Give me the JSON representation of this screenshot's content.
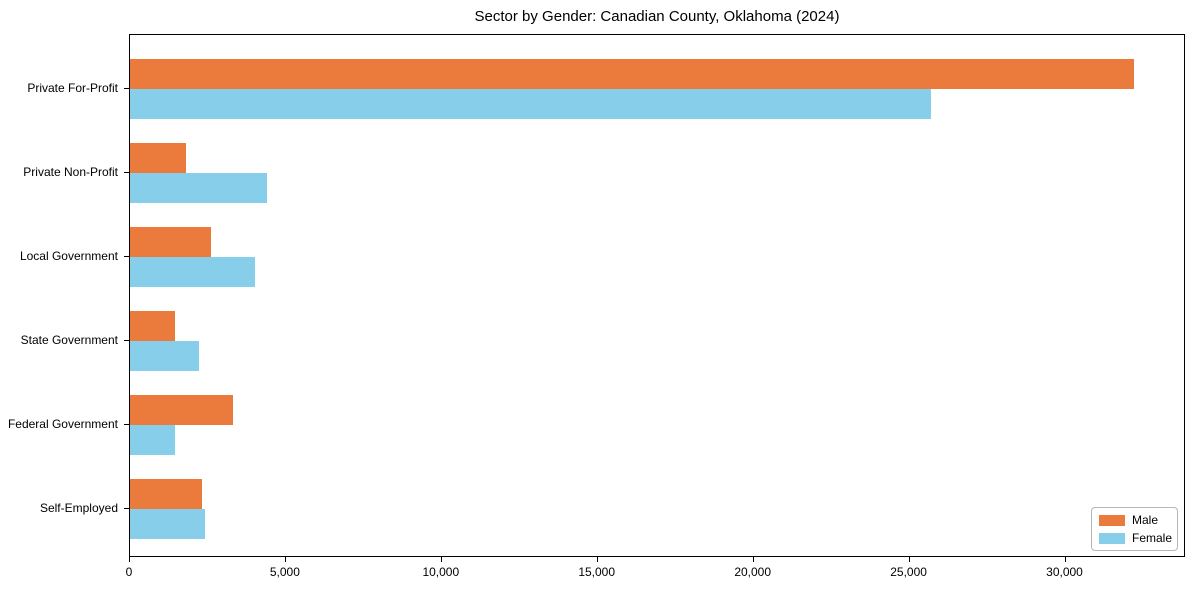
{
  "figure": {
    "title": "Sector by Gender: Canadian County, Oklahoma (2024)"
  },
  "chart_data": {
    "type": "bar",
    "orientation": "horizontal",
    "title": "Sector by Gender: Canadian County, Oklahoma (2024)",
    "xlabel": "",
    "ylabel": "",
    "categories": [
      "Private For-Profit",
      "Private Non-Profit",
      "Local Government",
      "State Government",
      "Federal Government",
      "Self-Employed"
    ],
    "series": [
      {
        "name": "Male",
        "color": "#ea7b3c",
        "values": [
          32200,
          1800,
          2600,
          1450,
          3300,
          2300
        ]
      },
      {
        "name": "Female",
        "color": "#87ceea",
        "values": [
          25700,
          4400,
          4000,
          2200,
          1450,
          2400
        ]
      }
    ],
    "xlim": [
      0,
      33865
    ],
    "x_ticks": [
      0,
      5000,
      10000,
      15000,
      20000,
      25000,
      30000
    ],
    "x_tick_labels": [
      "0",
      "5,000",
      "10,000",
      "15,000",
      "20,000",
      "25,000",
      "30,000"
    ],
    "grid": false,
    "legend": {
      "position": "lower right",
      "entries": [
        "Male",
        "Female"
      ]
    }
  }
}
